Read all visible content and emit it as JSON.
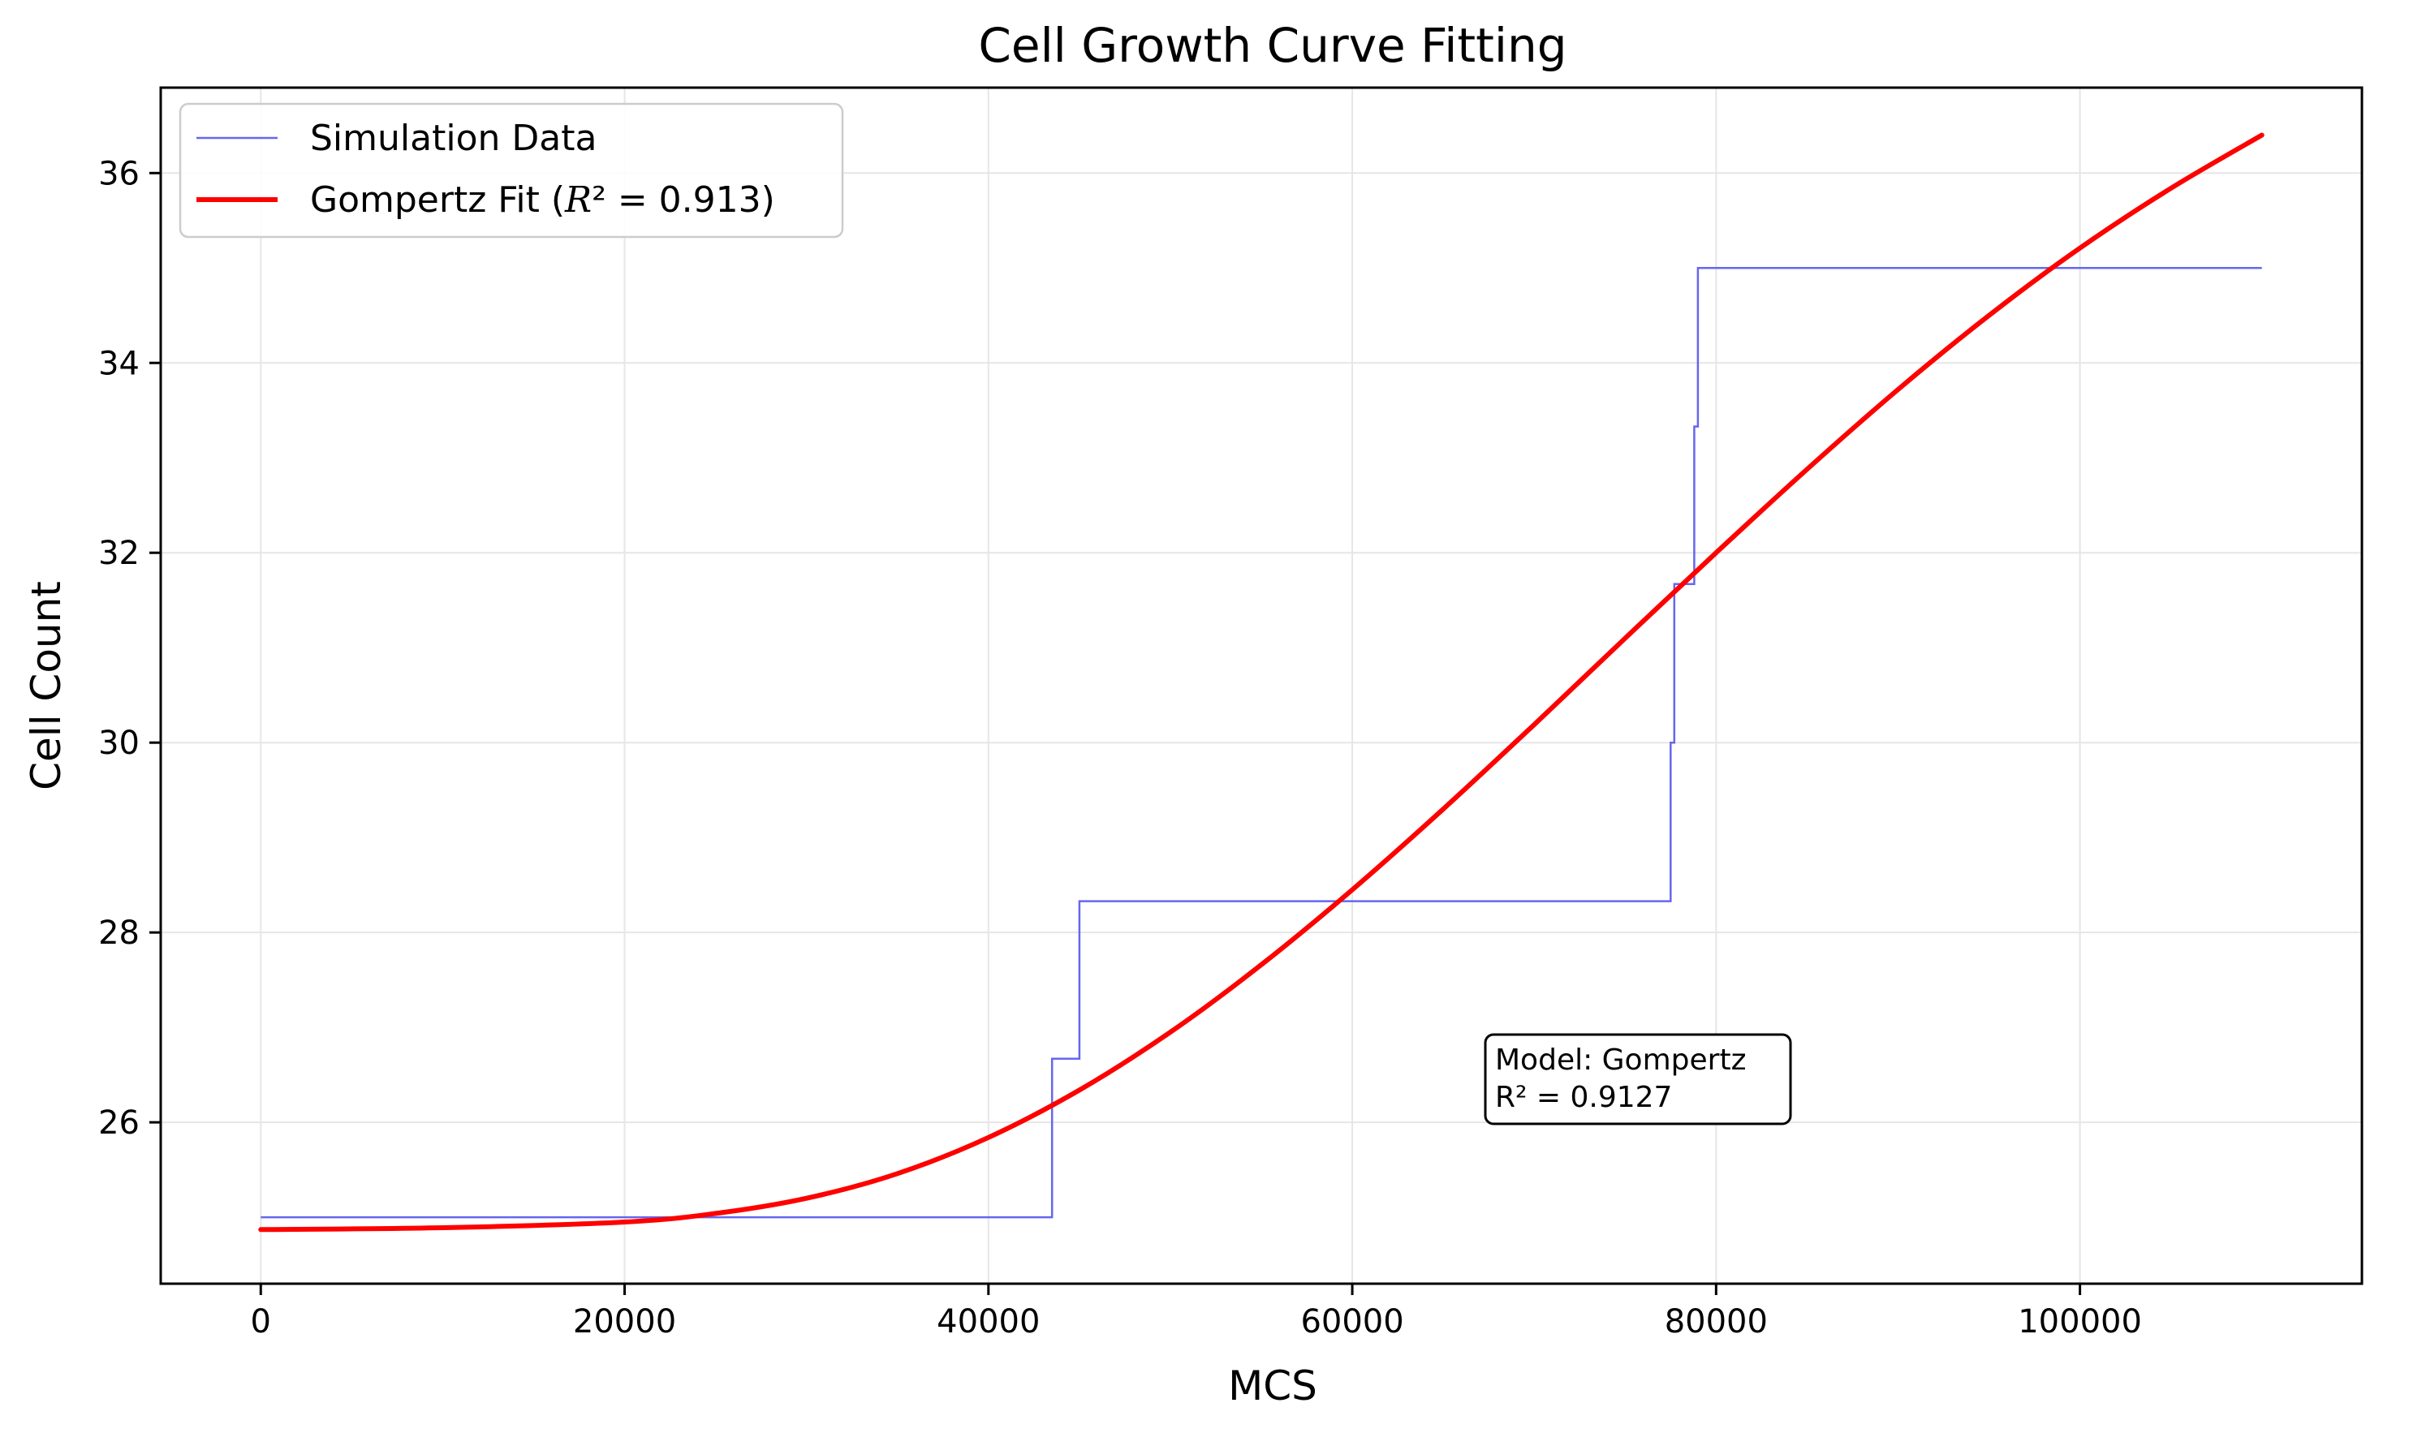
{
  "chart_data": {
    "type": "line",
    "title": "Cell Growth Curve Fitting",
    "xlabel": "MCS",
    "ylabel": "Cell Count",
    "xlim": [
      -5500,
      115500
    ],
    "ylim": [
      24.3,
      36.9
    ],
    "xticks": [
      0,
      20000,
      40000,
      60000,
      80000,
      100000
    ],
    "xtick_labels": [
      "0",
      "20000",
      "40000",
      "60000",
      "80000",
      "100000"
    ],
    "yticks": [
      26,
      28,
      30,
      32,
      34,
      36
    ],
    "ytick_labels": [
      "26",
      "28",
      "30",
      "32",
      "34",
      "36"
    ],
    "grid": true,
    "legend_position": "top-left",
    "series": [
      {
        "name": "Simulation Data",
        "style": "step",
        "color": "#6666ee",
        "x": [
          0,
          43500,
          43500,
          45000,
          45000,
          77500,
          77500,
          77700,
          77700,
          78800,
          78800,
          79000,
          79000,
          110000
        ],
        "y": [
          25.0,
          25.0,
          26.67,
          26.67,
          28.33,
          28.33,
          30.0,
          30.0,
          31.67,
          31.67,
          33.33,
          33.33,
          35.0,
          35.0
        ]
      },
      {
        "name": "Gompertz Fit",
        "name_suffix": " = 0.913)",
        "style": "line",
        "color": "#ff0000",
        "x": [
          0,
          10000,
          20000,
          25000,
          30000,
          35000,
          40000,
          45000,
          50000,
          55000,
          60000,
          65000,
          70000,
          75000,
          80000,
          85000,
          90000,
          95000,
          100000,
          105000,
          110000
        ],
        "y": [
          24.87,
          24.89,
          24.95,
          25.04,
          25.2,
          25.46,
          25.84,
          26.34,
          26.95,
          27.66,
          28.45,
          29.3,
          30.19,
          31.1,
          32.0,
          32.88,
          33.72,
          34.5,
          35.21,
          35.84,
          36.4
        ]
      }
    ],
    "annotation": {
      "lines": [
        "Model: Gompertz",
        "R² = 0.9127"
      ],
      "x": 67000,
      "y": 26.25
    }
  },
  "colors": {
    "simulation": "#6666ee",
    "fit": "#ff0000",
    "grid": "#e6e6e6",
    "axes": "#000000"
  }
}
